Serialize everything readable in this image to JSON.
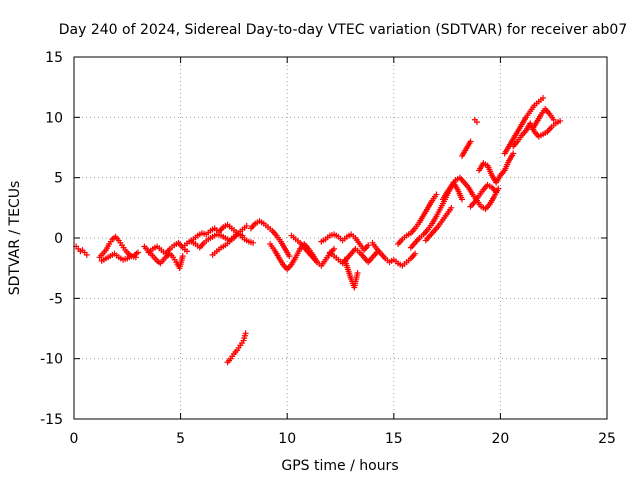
{
  "chart_data": {
    "type": "scatter",
    "title": "Day 240 of 2024, Sidereal Day-to-day VTEC variation (SDTVAR) for receiver ab07",
    "xlabel": "GPS time / hours",
    "ylabel": "SDTVAR / TECUs",
    "xlim": [
      0,
      25
    ],
    "ylim": [
      -15,
      15
    ],
    "xticks": [
      0,
      5,
      10,
      15,
      20,
      25
    ],
    "yticks": [
      -15,
      -10,
      -5,
      0,
      5,
      10,
      15
    ],
    "xtick_labels": [
      "0",
      "5",
      "10",
      "15",
      "20",
      "25"
    ],
    "ytick_labels": [
      "-15",
      "-10",
      "-5",
      "0",
      "5",
      "10",
      "15"
    ],
    "grid": true,
    "marker": "+",
    "color": "#ff0000",
    "series": [
      {
        "name": "trace-01",
        "x": [
          0.1,
          0.2,
          0.3,
          0.4,
          0.5,
          0.6
        ],
        "y": [
          -0.7,
          -0.9,
          -1.1,
          -1.0,
          -1.2,
          -1.4
        ]
      },
      {
        "name": "trace-02",
        "x": [
          1.2,
          1.35,
          1.5,
          1.65,
          1.8,
          1.95,
          2.1,
          2.25,
          2.4,
          2.55,
          2.7,
          2.85,
          3.0
        ],
        "y": [
          -1.6,
          -1.3,
          -1.0,
          -0.5,
          -0.1,
          0.1,
          -0.2,
          -0.6,
          -1.0,
          -1.3,
          -1.5,
          -1.4,
          -1.2
        ]
      },
      {
        "name": "trace-03",
        "x": [
          1.3,
          1.5,
          1.7,
          1.9,
          2.1,
          2.3,
          2.5,
          2.7,
          2.9
        ],
        "y": [
          -1.9,
          -1.7,
          -1.5,
          -1.3,
          -1.6,
          -1.8,
          -1.7,
          -1.5,
          -1.6
        ]
      },
      {
        "name": "trace-04",
        "x": [
          3.3,
          3.45,
          3.6,
          3.75,
          3.9,
          4.05,
          4.2,
          4.35,
          4.5,
          4.65,
          4.8,
          4.95,
          5.1
        ],
        "y": [
          -0.7,
          -1.0,
          -1.3,
          -1.6,
          -1.9,
          -2.1,
          -1.8,
          -1.5,
          -1.3,
          -1.6,
          -2.0,
          -2.5,
          -1.5
        ]
      },
      {
        "name": "trace-05",
        "x": [
          3.5,
          3.7,
          3.9,
          4.1,
          4.3,
          4.5,
          4.7,
          4.9,
          5.1,
          5.3
        ],
        "y": [
          -1.2,
          -0.9,
          -0.7,
          -1.0,
          -1.3,
          -0.9,
          -0.6,
          -0.4,
          -0.8,
          -1.1
        ]
      },
      {
        "name": "trace-06",
        "x": [
          5.2,
          5.4,
          5.6,
          5.8,
          6.0,
          6.2,
          6.4,
          6.6,
          6.8,
          7.0,
          7.2,
          7.4,
          7.6,
          7.8,
          8.0,
          8.2,
          8.4
        ],
        "y": [
          -0.6,
          -0.3,
          -0.1,
          0.2,
          0.4,
          0.3,
          0.6,
          0.8,
          0.5,
          0.9,
          1.1,
          0.8,
          0.5,
          0.2,
          -0.1,
          -0.3,
          -0.4
        ]
      },
      {
        "name": "trace-07",
        "x": [
          6.5,
          6.7,
          6.9,
          7.1,
          7.3,
          7.5,
          7.7,
          7.9,
          8.1
        ],
        "y": [
          -1.4,
          -1.1,
          -0.8,
          -0.6,
          -0.3,
          0.0,
          0.4,
          0.7,
          1.0
        ]
      },
      {
        "name": "trace-08",
        "x": [
          5.5,
          5.7,
          5.9,
          6.1,
          6.3,
          6.5,
          6.7,
          6.9,
          7.1,
          7.3,
          7.5,
          7.7,
          7.9
        ],
        "y": [
          -0.3,
          -0.5,
          -0.8,
          -0.4,
          -0.1,
          0.1,
          0.3,
          0.2,
          0.0,
          -0.2,
          0.1,
          0.4,
          0.2
        ]
      },
      {
        "name": "trace-09",
        "x": [
          7.2,
          7.35,
          7.5,
          7.65,
          7.8,
          7.95,
          8.05
        ],
        "y": [
          -10.3,
          -10.0,
          -9.6,
          -9.3,
          -8.9,
          -8.5,
          -7.9
        ]
      },
      {
        "name": "trace-10",
        "x": [
          8.3,
          8.5,
          8.7,
          8.9,
          9.1,
          9.3,
          9.5,
          9.7,
          9.9,
          10.1
        ],
        "y": [
          0.8,
          1.2,
          1.4,
          1.2,
          0.9,
          0.6,
          0.2,
          -0.3,
          -0.9,
          -1.5
        ]
      },
      {
        "name": "trace-11",
        "x": [
          9.2,
          9.4,
          9.6,
          9.8,
          10.0,
          10.2,
          10.4,
          10.6,
          10.8,
          11.0,
          11.2,
          11.4
        ],
        "y": [
          -0.5,
          -1.0,
          -1.6,
          -2.2,
          -2.6,
          -2.2,
          -1.6,
          -0.9,
          -0.5,
          -0.9,
          -1.4,
          -2.0
        ]
      },
      {
        "name": "trace-12",
        "x": [
          10.2,
          10.4,
          10.6,
          10.8,
          11.0,
          11.2,
          11.4,
          11.6,
          11.8,
          12.0,
          12.2
        ],
        "y": [
          0.2,
          -0.1,
          -0.4,
          -0.8,
          -1.2,
          -1.6,
          -2.0,
          -2.3,
          -1.8,
          -1.3,
          -0.9
        ]
      },
      {
        "name": "trace-13",
        "x": [
          11.6,
          11.8,
          12.0,
          12.2,
          12.4,
          12.6,
          12.8,
          13.0,
          13.2,
          13.4,
          13.6,
          13.8
        ],
        "y": [
          -0.3,
          -0.1,
          0.2,
          0.3,
          0.1,
          -0.2,
          0.1,
          0.3,
          0.0,
          -0.5,
          -1.0,
          -0.6
        ]
      },
      {
        "name": "trace-14",
        "x": [
          12.0,
          12.2,
          12.4,
          12.6,
          12.8,
          13.0,
          13.2,
          13.4,
          13.6,
          13.8,
          14.0,
          14.2
        ],
        "y": [
          -1.2,
          -1.5,
          -1.8,
          -2.1,
          -1.7,
          -1.3,
          -0.9,
          -1.2,
          -1.6,
          -2.0,
          -1.6,
          -1.2
        ]
      },
      {
        "name": "trace-15",
        "x": [
          12.7,
          12.85,
          13.0,
          13.15,
          13.3
        ],
        "y": [
          -1.8,
          -2.6,
          -3.4,
          -4.1,
          -2.9
        ]
      },
      {
        "name": "trace-16",
        "x": [
          14.0,
          14.2,
          14.4,
          14.6,
          14.8,
          15.0,
          15.2,
          15.4,
          15.6,
          15.8,
          16.0
        ],
        "y": [
          -0.4,
          -0.9,
          -1.3,
          -1.7,
          -2.0,
          -1.8,
          -2.1,
          -2.3,
          -2.0,
          -1.7,
          -1.3
        ]
      },
      {
        "name": "trace-17",
        "x": [
          15.2,
          15.4,
          15.6,
          15.8,
          16.0,
          16.2,
          16.4,
          16.6,
          16.8,
          17.0
        ],
        "y": [
          -0.5,
          -0.1,
          0.2,
          0.4,
          0.8,
          1.3,
          1.9,
          2.5,
          3.1,
          3.6
        ]
      },
      {
        "name": "trace-18",
        "x": [
          15.8,
          16.0,
          16.2,
          16.4,
          16.6,
          16.8,
          17.0,
          17.2,
          17.4,
          17.6,
          17.8,
          18.0,
          18.2
        ],
        "y": [
          -0.8,
          -0.4,
          0.0,
          0.3,
          0.7,
          1.2,
          1.8,
          2.5,
          3.2,
          3.9,
          4.6,
          4.0,
          3.2
        ]
      },
      {
        "name": "trace-19",
        "x": [
          16.5,
          16.7,
          16.9,
          17.1,
          17.3,
          17.5,
          17.7
        ],
        "y": [
          -0.2,
          0.2,
          0.6,
          1.0,
          1.5,
          2.0,
          2.5
        ]
      },
      {
        "name": "trace-20",
        "x": [
          17.3,
          17.5,
          17.7,
          17.9,
          18.1,
          18.3,
          18.5,
          18.7,
          18.9,
          19.1,
          19.3,
          19.5,
          19.7,
          19.9
        ],
        "y": [
          3.2,
          3.8,
          4.3,
          4.8,
          5.0,
          4.6,
          4.2,
          3.6,
          3.1,
          2.6,
          2.4,
          2.8,
          3.4,
          4.1
        ]
      },
      {
        "name": "trace-21",
        "x": [
          18.2,
          18.4,
          18.6
        ],
        "y": [
          6.8,
          7.4,
          8.0
        ]
      },
      {
        "name": "trace-22",
        "x": [
          18.8,
          18.9
        ],
        "y": [
          9.8,
          9.6
        ]
      },
      {
        "name": "trace-23",
        "x": [
          19.0,
          19.2,
          19.4,
          19.6,
          19.8,
          20.0,
          20.2,
          20.4,
          20.6
        ],
        "y": [
          5.6,
          6.2,
          6.0,
          5.2,
          4.6,
          5.2,
          5.6,
          6.4,
          7.0
        ]
      },
      {
        "name": "trace-24",
        "x": [
          18.6,
          18.8,
          19.0,
          19.2,
          19.4,
          19.6,
          19.8
        ],
        "y": [
          2.6,
          3.0,
          3.5,
          4.0,
          4.4,
          4.2,
          3.8
        ]
      },
      {
        "name": "trace-25",
        "x": [
          20.2,
          20.4,
          20.6,
          20.8,
          21.0,
          21.2,
          21.4,
          21.6,
          21.8,
          22.0
        ],
        "y": [
          7.0,
          7.6,
          8.2,
          8.8,
          9.4,
          10.0,
          10.5,
          11.0,
          11.3,
          11.6
        ]
      },
      {
        "name": "trace-26",
        "x": [
          20.6,
          20.8,
          21.0,
          21.2,
          21.4,
          21.6,
          21.8,
          22.0,
          22.2,
          22.4,
          22.6,
          22.8
        ],
        "y": [
          7.6,
          8.0,
          8.5,
          8.9,
          9.5,
          8.8,
          8.4,
          8.6,
          8.8,
          9.2,
          9.5,
          9.7
        ]
      },
      {
        "name": "trace-27",
        "x": [
          21.5,
          21.7,
          21.9,
          22.1,
          22.3,
          22.5
        ],
        "y": [
          9.0,
          9.6,
          10.2,
          10.7,
          10.3,
          9.8
        ]
      }
    ]
  }
}
